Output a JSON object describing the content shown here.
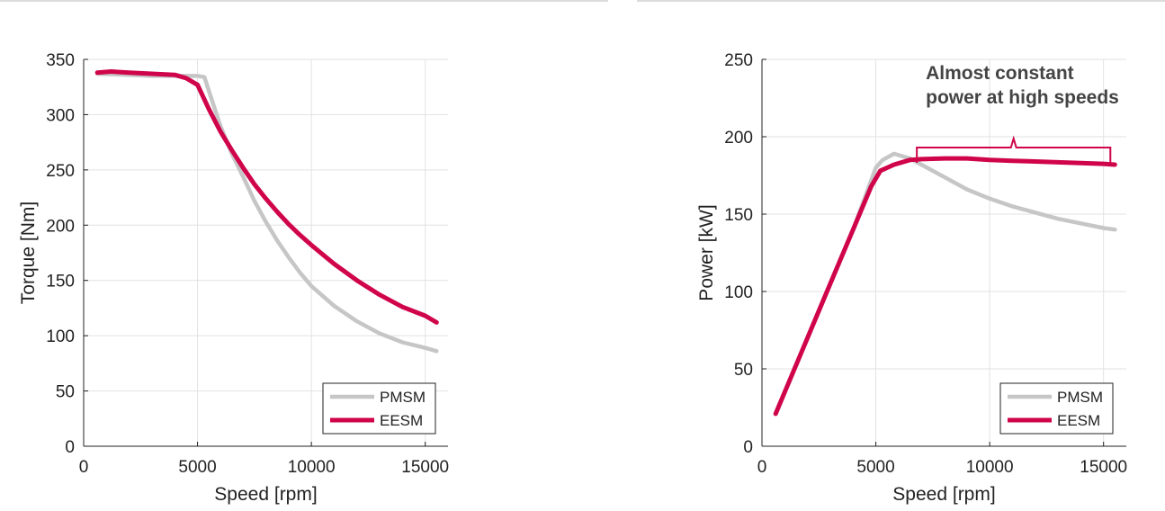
{
  "colors": {
    "pmsm": "#c6c6c6",
    "eesm": "#d0044a",
    "grid": "#e2e2e2",
    "axis": "#222222",
    "annotation_text": "#444444"
  },
  "chart_data": [
    {
      "type": "line",
      "title": "",
      "xlabel": "Speed [rpm]",
      "ylabel": "Torque [Nm]",
      "xlim": [
        0,
        16000
      ],
      "ylim": [
        0,
        350
      ],
      "xticks": [
        0,
        5000,
        10000,
        15000
      ],
      "xtick_labels": [
        "0",
        "5000",
        "10000",
        "15000"
      ],
      "yticks": [
        0,
        50,
        100,
        150,
        200,
        250,
        300,
        350
      ],
      "ytick_labels": [
        "0",
        "50",
        "100",
        "150",
        "200",
        "250",
        "300",
        "350"
      ],
      "grid": true,
      "legend": "bottom-right",
      "series": [
        {
          "name": "PMSM",
          "color": "#c6c6c6",
          "x": [
            600,
            2000,
            3000,
            4000,
            5000,
            5300,
            5600,
            6000,
            6500,
            7000,
            7500,
            8000,
            8500,
            9000,
            9500,
            10000,
            11000,
            12000,
            13000,
            14000,
            15000,
            15500
          ],
          "y": [
            337,
            336,
            335,
            335,
            335,
            334,
            315,
            290,
            265,
            244,
            222,
            203,
            186,
            171,
            157,
            145,
            127,
            113,
            102,
            94,
            89,
            86
          ]
        },
        {
          "name": "EESM",
          "color": "#d0044a",
          "x": [
            600,
            1200,
            2000,
            3000,
            4000,
            4500,
            5000,
            5500,
            6000,
            6500,
            7000,
            7500,
            8000,
            8500,
            9000,
            9500,
            10000,
            11000,
            12000,
            13000,
            14000,
            15000,
            15500
          ],
          "y": [
            338,
            339,
            338,
            337,
            336,
            333,
            327,
            305,
            285,
            268,
            252,
            237,
            224,
            212,
            201,
            191,
            182,
            165,
            150,
            137,
            126,
            118,
            112
          ]
        }
      ]
    },
    {
      "type": "line",
      "title": "",
      "xlabel": "Speed [rpm]",
      "ylabel": "Power [kW]",
      "xlim": [
        0,
        16000
      ],
      "ylim": [
        0,
        250
      ],
      "xticks": [
        0,
        5000,
        10000,
        15000
      ],
      "xtick_labels": [
        "0",
        "5000",
        "10000",
        "15000"
      ],
      "yticks": [
        0,
        50,
        100,
        150,
        200,
        250
      ],
      "ytick_labels": [
        "0",
        "50",
        "100",
        "150",
        "200",
        "250"
      ],
      "grid": true,
      "legend": "bottom-right",
      "annotation": {
        "text_lines": [
          "Almost constant",
          "power at high speeds"
        ],
        "x_range": [
          6800,
          15300
        ],
        "y": 193
      },
      "series": [
        {
          "name": "PMSM",
          "color": "#c6c6c6",
          "x": [
            600,
            1000,
            2000,
            3000,
            4000,
            5000,
            5300,
            5800,
            6500,
            7000,
            8000,
            9000,
            10000,
            11000,
            12000,
            13000,
            14000,
            15000,
            15500
          ],
          "y": [
            21,
            35,
            70,
            105,
            140,
            180,
            185,
            189,
            186,
            182,
            174,
            166,
            160,
            155,
            151,
            147,
            144,
            141,
            140
          ]
        },
        {
          "name": "EESM",
          "color": "#d0044a",
          "x": [
            600,
            1000,
            2000,
            3000,
            4000,
            4800,
            5200,
            5800,
            6500,
            7000,
            8000,
            9000,
            10000,
            11000,
            12000,
            13000,
            14000,
            15000,
            15500
          ],
          "y": [
            21,
            35,
            70,
            105,
            140,
            168,
            178,
            182,
            185,
            185.5,
            186,
            186,
            185,
            184.5,
            184,
            183.5,
            183,
            182.5,
            182
          ]
        }
      ]
    }
  ]
}
